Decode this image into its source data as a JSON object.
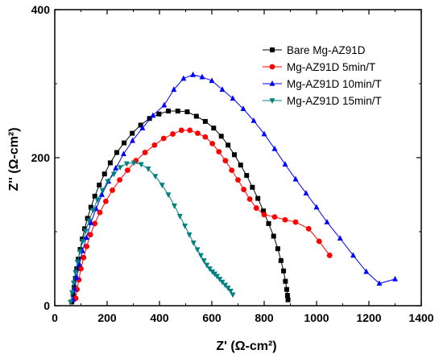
{
  "chart_data": {
    "type": "scatter",
    "xlabel": "Z' (Ω-cm²)",
    "ylabel": "Z'' (Ω-cm²)",
    "xlim": [
      0,
      1400
    ],
    "ylim": [
      0,
      400
    ],
    "xticks": [
      0,
      200,
      400,
      600,
      800,
      1000,
      1200,
      1400
    ],
    "yticks": [
      0,
      200,
      400
    ],
    "grid": false,
    "legend_position": "top-right",
    "series": [
      {
        "name": "Bare Mg-AZ91D",
        "color": "#000000",
        "marker": "square",
        "x": [
          65,
          70,
          74,
          79,
          84,
          90,
          97,
          105,
          114,
          125,
          138,
          153,
          170,
          190,
          212,
          237,
          265,
          296,
          328,
          362,
          398,
          434,
          470,
          506,
          541,
          575,
          607,
          636,
          662,
          686,
          710,
          733,
          755,
          776,
          797,
          817,
          836,
          852,
          864,
          874,
          881,
          886,
          889,
          891
        ],
        "y": [
          5,
          15,
          25,
          37,
          50,
          63,
          76,
          90,
          104,
          118,
          133,
          148,
          163,
          178,
          193,
          207,
          220,
          233,
          244,
          253,
          259,
          263,
          263,
          262,
          256,
          249,
          240,
          229,
          217,
          204,
          190,
          176,
          160,
          145,
          128,
          111,
          94,
          77,
          61,
          47,
          33,
          22,
          14,
          8
        ]
      },
      {
        "name": "Mg-AZ91D 5min/T",
        "color": "#ff0000",
        "marker": "circle",
        "x": [
          80,
          85,
          92,
          100,
          110,
          122,
          136,
          153,
          172,
          195,
          220,
          248,
          278,
          310,
          345,
          381,
          416,
          451,
          484,
          516,
          546,
          575,
          602,
          627,
          652,
          676,
          700,
          722,
          745,
          770,
          800,
          840,
          880,
          920,
          970,
          1010,
          1050
        ],
        "y": [
          10,
          22,
          35,
          50,
          65,
          80,
          96,
          111,
          126,
          141,
          156,
          170,
          183,
          196,
          207,
          217,
          226,
          232,
          237,
          237,
          233,
          228,
          219,
          208,
          196,
          183,
          170,
          157,
          144,
          132,
          123,
          120,
          116,
          113,
          104,
          87,
          68
        ],
        "_note": "y tail below"
      },
      {
        "name": "Mg-AZ91D 10min/T",
        "color": "#0000ff",
        "marker": "triangle-up",
        "x": [
          70,
          76,
          84,
          94,
          106,
          121,
          138,
          158,
          180,
          205,
          233,
          263,
          297,
          335,
          375,
          418,
          455,
          492,
          528,
          563,
          600,
          640,
          680,
          720,
          760,
          800,
          840,
          880,
          920,
          960,
          1000,
          1040,
          1090,
          1140,
          1190,
          1240,
          1300
        ],
        "y": [
          8,
          22,
          38,
          56,
          74,
          92,
          112,
          131,
          150,
          168,
          186,
          205,
          223,
          240,
          257,
          271,
          292,
          307,
          312,
          309,
          304,
          292,
          280,
          266,
          250,
          232,
          212,
          191,
          171,
          152,
          133,
          113,
          91,
          68,
          46,
          30,
          36
        ]
      },
      {
        "name": "Mg-AZ91D 15min/T",
        "color": "#008080",
        "marker": "triangle-down",
        "x": [
          60,
          66,
          72,
          79,
          87,
          96,
          106,
          118,
          131,
          146,
          163,
          182,
          203,
          226,
          250,
          275,
          302,
          330,
          357,
          384,
          410,
          434,
          457,
          478,
          497,
          514,
          530,
          545,
          558,
          570,
          581,
          592,
          602,
          611,
          620,
          630,
          640,
          651,
          662,
          672,
          680
        ],
        "y": [
          5,
          18,
          31,
          45,
          59,
          73,
          87,
          101,
          115,
          129,
          143,
          156,
          168,
          178,
          187,
          192,
          193,
          191,
          185,
          175,
          163,
          150,
          135,
          121,
          108,
          96,
          85,
          76,
          68,
          61,
          55,
          50,
          46,
          43,
          40,
          36,
          32,
          28,
          24,
          20,
          15
        ]
      }
    ]
  }
}
